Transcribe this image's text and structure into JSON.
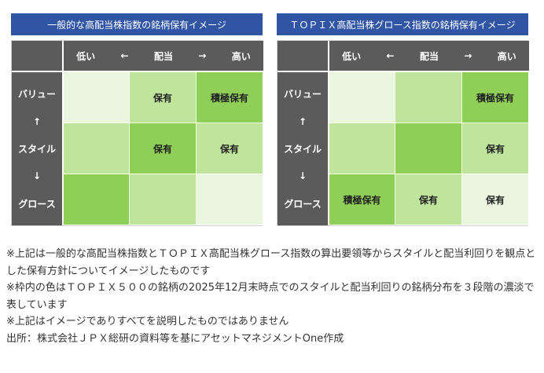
{
  "colors": {
    "title_bg": "#2f55a4",
    "header_bg": "#5b5b5b",
    "level1": "#eaf6e0",
    "level2": "#bfe49c",
    "level3": "#8fcf57"
  },
  "matrix_headers": {
    "top": [
      "低い",
      "←",
      "配当",
      "→",
      "高い"
    ],
    "side": [
      "バリュー",
      "↑",
      "スタイル",
      "↓",
      "グロース"
    ]
  },
  "panels": [
    {
      "title": "一般的な高配当株指数の銘柄保有イメージ",
      "rows": [
        [
          {
            "label": "",
            "level": 1
          },
          {
            "label": "保有",
            "level": 2
          },
          {
            "label": "積極保有",
            "level": 3
          }
        ],
        [
          {
            "label": "",
            "level": 2
          },
          {
            "label": "保有",
            "level": 3
          },
          {
            "label": "保有",
            "level": 2
          }
        ],
        [
          {
            "label": "",
            "level": 3
          },
          {
            "label": "",
            "level": 2
          },
          {
            "label": "",
            "level": 1
          }
        ]
      ]
    },
    {
      "title": "ＴＯＰＩＸ高配当株グロース指数の銘柄保有イメージ",
      "rows": [
        [
          {
            "label": "",
            "level": 1
          },
          {
            "label": "",
            "level": 2
          },
          {
            "label": "積極保有",
            "level": 3
          }
        ],
        [
          {
            "label": "",
            "level": 2
          },
          {
            "label": "",
            "level": 3
          },
          {
            "label": "保有",
            "level": 2
          }
        ],
        [
          {
            "label": "積極保有",
            "level": 3
          },
          {
            "label": "保有",
            "level": 2
          },
          {
            "label": "保有",
            "level": 1
          }
        ]
      ]
    }
  ],
  "notes": [
    "※上記は一般的な高配当株指数とＴＯＰＩＸ高配当株グロース指数の算出要領等からスタイルと配当利回りを観点とした保有方針についてイメージしたものです",
    "※枠内の色はＴＯＰＩＸ５００の銘柄の2025年12月末時点でのスタイルと配当利回りの銘柄分布を３段階の濃淡で表しています",
    "※上記はイメージでありすべてを説明したものではありません",
    "出所：株式会社ＪＰＸ総研の資料等を基にアセットマネジメントOne作成"
  ]
}
